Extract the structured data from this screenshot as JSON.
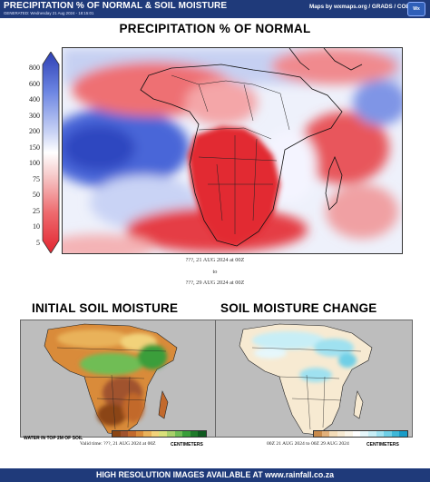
{
  "header": {
    "title": "PRECIPITATION % OF NORMAL & SOIL MOISTURE",
    "generated": "GENERATED: Wednesday 21 Aug 2024 - 18:15:01",
    "credit": "Maps by wxmaps.org / GRADS / COLA",
    "logo_text": "Wx"
  },
  "precip": {
    "title": "PRECIPITATION % OF NORMAL",
    "colorbar_labels": [
      "800",
      "600",
      "400",
      "300",
      "200",
      "150",
      "100",
      "75",
      "50",
      "25",
      "10",
      "5"
    ],
    "colors": {
      "wet": "#3a5bd6",
      "normal": "#ffffff",
      "dry": "#e8303a"
    },
    "valid_line1": "???, 21 AUG 2024 at 00Z",
    "valid_line2": "to",
    "valid_line3": "???, 29 AUG 2024 at 00Z"
  },
  "soil": {
    "initial_title": "INITIAL SOIL MOISTURE",
    "change_title": "SOIL MOISTURE CHANGE",
    "water_label": "WATER IN TOP 2M OF SOIL",
    "valid_left": "Valid time: ???, 21 AUG 2024 at 00Z",
    "centimeters_left": "CENTIMETERS",
    "valid_right": "00Z 21 AUG 2024 to 00Z 29 AUG 2024",
    "centimeters_right": "CENTIMETERS",
    "initial_colors": [
      "#8b4513",
      "#a0522d",
      "#c2692c",
      "#d98b3a",
      "#e9b25a",
      "#f2d27a",
      "#d9e07a",
      "#a8d06a",
      "#6fbd55",
      "#3a9e3a",
      "#1f7a2a",
      "#0f5a1f"
    ],
    "change_colors": [
      "#c98a4a",
      "#e2b07a",
      "#f3dcb8",
      "#f7ead2",
      "#fbf5e8",
      "#ffffff",
      "#e6f7fb",
      "#c7eef6",
      "#9fe1f0",
      "#6fcfe6",
      "#3fb8d8",
      "#1a9cc7"
    ]
  },
  "footer": {
    "text": "HIGH RESOLUTION IMAGES AVAILABLE AT www.rainfall.co.za"
  }
}
